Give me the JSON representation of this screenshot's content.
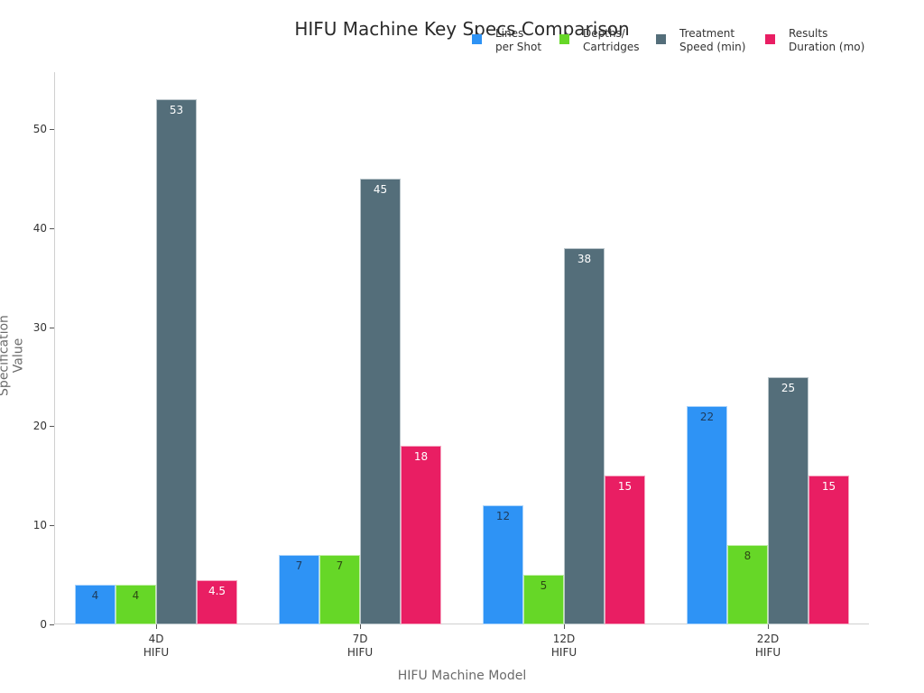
{
  "chart": {
    "title": "HIFU Machine Key Specs Comparison",
    "xlabel": "HIFU Machine Model",
    "ylabel": "Specification Value",
    "yticks": [
      "0",
      "10",
      "20",
      "30",
      "40",
      "50"
    ],
    "categories": [
      "4D\nHIFU",
      "7D\nHIFU",
      "12D\nHIFU",
      "22D\nHIFU"
    ],
    "legend": [
      {
        "label": "Lines\nper Shot",
        "color": "#2e93f5"
      },
      {
        "label": "Depths/\nCartridges",
        "color": "#66d727"
      },
      {
        "label": "Treatment\nSpeed (min)",
        "color": "#546e7a"
      },
      {
        "label": "Results\nDuration (mo)",
        "color": "#e91e63"
      }
    ]
  },
  "chart_data": {
    "type": "bar",
    "title": "HIFU Machine Key Specs Comparison",
    "xlabel": "HIFU Machine Model",
    "ylabel": "Specification Value",
    "categories": [
      "4D HIFU",
      "7D HIFU",
      "12D HIFU",
      "22D HIFU"
    ],
    "series": [
      {
        "name": "Lines per Shot",
        "color": "#2e93f5",
        "values": [
          4,
          7,
          12,
          22
        ]
      },
      {
        "name": "Depths/Cartridges",
        "color": "#66d727",
        "values": [
          4,
          7,
          5,
          8
        ]
      },
      {
        "name": "Treatment Speed (min)",
        "color": "#546e7a",
        "values": [
          53,
          45,
          38,
          25
        ]
      },
      {
        "name": "Results Duration (mo)",
        "color": "#e91e63",
        "values": [
          4.5,
          18,
          15,
          15
        ]
      }
    ],
    "ylim": [
      0,
      56
    ],
    "yticks": [
      0,
      10,
      20,
      30,
      40,
      50
    ],
    "grid": false,
    "legend_position": "top-right",
    "data_labels": true
  }
}
